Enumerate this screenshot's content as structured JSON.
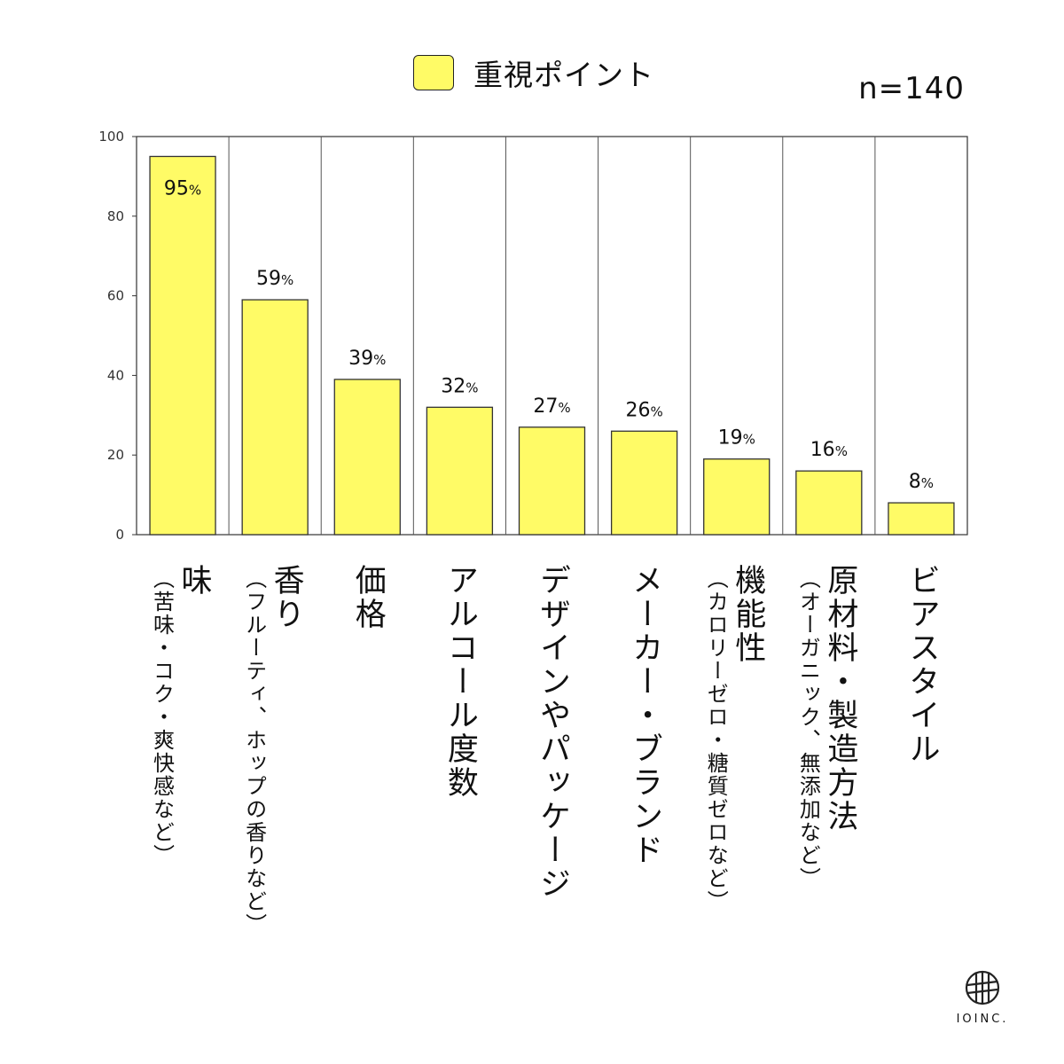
{
  "legend": {
    "label": "重視ポイント",
    "color": "#fffb66"
  },
  "sample_size": "n=140",
  "chart_data": {
    "type": "bar",
    "title": "",
    "xlabel": "",
    "ylabel": "",
    "ylim": [
      0,
      100
    ],
    "yticks": [
      0,
      20,
      40,
      60,
      80,
      100
    ],
    "series": [
      {
        "name": "重視ポイント",
        "values": [
          95,
          59,
          39,
          32,
          27,
          26,
          19,
          16,
          8
        ]
      }
    ],
    "value_labels": [
      "95%",
      "59%",
      "39%",
      "32%",
      "27%",
      "26%",
      "19%",
      "16%",
      "8%"
    ],
    "categories": [
      {
        "label": "味",
        "sub": "（苦味・コク・爽快感など）"
      },
      {
        "label": "香り",
        "sub": "（フルーティ、ホップの香りなど）"
      },
      {
        "label": "価格",
        "sub": ""
      },
      {
        "label": "アルコール度数",
        "sub": ""
      },
      {
        "label": "デザインやパッケージ",
        "sub": ""
      },
      {
        "label": "メーカー・ブランド",
        "sub": ""
      },
      {
        "label": "機能性",
        "sub": "（カロリーゼロ・糖質ゼロなど）"
      },
      {
        "label": "原材料・製造方法",
        "sub": "（オーガニック、無添加など）"
      },
      {
        "label": "ビアスタイル",
        "sub": ""
      }
    ],
    "bar_color": "#fffb66",
    "grid": false
  },
  "brand": {
    "name": "IOINC.",
    "icon": "hatch-circle-logo"
  }
}
